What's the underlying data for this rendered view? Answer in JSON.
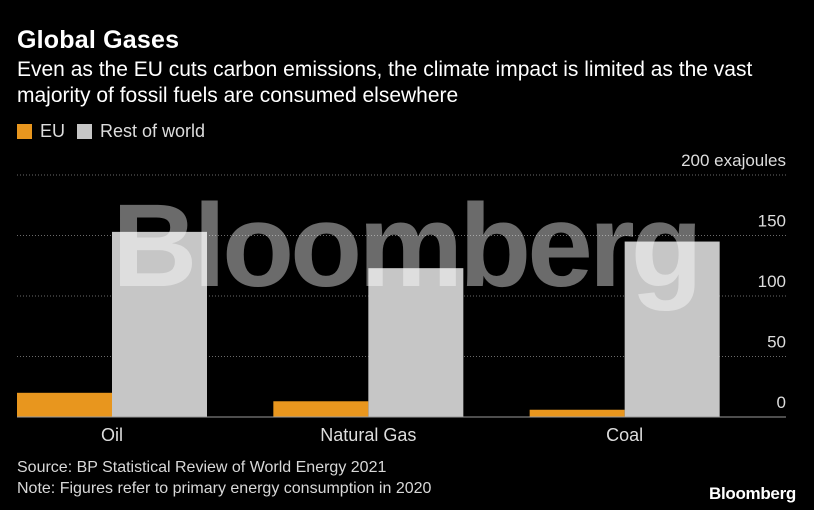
{
  "header": {
    "title": "Global Gases",
    "subtitle": "Even as the EU cuts carbon emissions, the climate impact is limited as the vast majority of fossil fuels are consumed elsewhere"
  },
  "legend": {
    "items": [
      {
        "label": "EU",
        "color": "#e8961e"
      },
      {
        "label": "Rest of world",
        "color": "#c6c6c6"
      }
    ]
  },
  "chart_data": {
    "type": "bar",
    "categories": [
      "Oil",
      "Natural Gas",
      "Coal"
    ],
    "series": [
      {
        "name": "EU",
        "values": [
          20,
          13,
          6
        ],
        "color": "#e8961e"
      },
      {
        "name": "Rest of world",
        "values": [
          153,
          123,
          145
        ],
        "color": "#c6c6c6"
      }
    ],
    "ylim": [
      0,
      200
    ],
    "yticks": [
      0,
      50,
      100,
      150,
      200
    ],
    "ytick_labels": [
      "0",
      "50",
      "100",
      "150",
      "200 exajoules"
    ],
    "grid": true,
    "legend_position": "top-left"
  },
  "watermark": "Bloomberg",
  "footer": {
    "source": "Source: BP Statistical Review of World Energy 2021",
    "note": "Note: Figures refer to primary energy consumption in 2020"
  },
  "brand": "Bloomberg"
}
